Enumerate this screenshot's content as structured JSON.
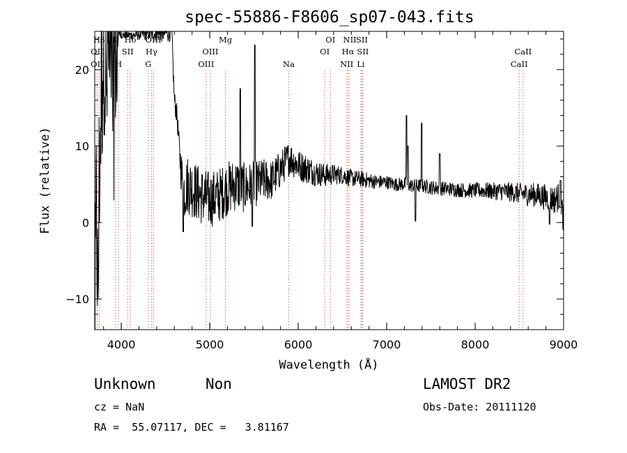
{
  "chart_data": {
    "type": "line",
    "title": "spec-55886-F8606_sp07-043.fits",
    "xlabel": "Wavelength (Å)",
    "ylabel": "Flux (relative)",
    "xlim": [
      3700,
      9000
    ],
    "ylim": [
      -14,
      25
    ],
    "x_ticks": [
      4000,
      5000,
      6000,
      7000,
      8000,
      9000
    ],
    "y_ticks": [
      -10,
      0,
      10,
      20
    ],
    "grid": false,
    "line_color": "#000000",
    "marker_line_color": "#cc3333",
    "spectrum_anchors": [
      [
        3705,
        -12
      ],
      [
        3720,
        5
      ],
      [
        3735,
        -13
      ],
      [
        3750,
        6
      ],
      [
        3770,
        15
      ],
      [
        3790,
        21
      ],
      [
        3810,
        25
      ],
      [
        3830,
        14
      ],
      [
        3850,
        25
      ],
      [
        3870,
        18
      ],
      [
        3890,
        25
      ],
      [
        3910,
        12
      ],
      [
        3930,
        24
      ],
      [
        3950,
        20
      ],
      [
        3970,
        25
      ],
      [
        4000,
        24.5
      ],
      [
        4100,
        24.5
      ],
      [
        4200,
        24.6
      ],
      [
        4300,
        24.7
      ],
      [
        4400,
        24.7
      ],
      [
        4500,
        24.8
      ],
      [
        4570,
        25
      ],
      [
        4590,
        19
      ],
      [
        4600,
        16
      ],
      [
        4630,
        14
      ],
      [
        4660,
        9
      ],
      [
        4700,
        4
      ],
      [
        4750,
        5
      ],
      [
        4800,
        4.5
      ],
      [
        4900,
        3.5
      ],
      [
        5000,
        3
      ],
      [
        5100,
        3.5
      ],
      [
        5200,
        4.5
      ],
      [
        5300,
        5
      ],
      [
        5400,
        4.5
      ],
      [
        5500,
        5
      ],
      [
        5600,
        5.5
      ],
      [
        5700,
        5.5
      ],
      [
        5800,
        7
      ],
      [
        5900,
        8.5
      ],
      [
        6000,
        7.5
      ],
      [
        6100,
        7
      ],
      [
        6200,
        6.5
      ],
      [
        6300,
        6.2
      ],
      [
        6400,
        6.3
      ],
      [
        6500,
        6.2
      ],
      [
        6600,
        5.8
      ],
      [
        6700,
        5.7
      ],
      [
        6800,
        5.5
      ],
      [
        6900,
        5.3
      ],
      [
        7000,
        5.3
      ],
      [
        7100,
        5
      ],
      [
        7200,
        5
      ],
      [
        7300,
        4.8
      ],
      [
        7400,
        4.8
      ],
      [
        7500,
        4.6
      ],
      [
        7600,
        4.5
      ],
      [
        7700,
        4.4
      ],
      [
        7800,
        4.3
      ],
      [
        7900,
        4.2
      ],
      [
        8000,
        4.2
      ],
      [
        8100,
        4.2
      ],
      [
        8200,
        4.1
      ],
      [
        8300,
        4.1
      ],
      [
        8400,
        4
      ],
      [
        8500,
        3.8
      ],
      [
        8600,
        3.7
      ],
      [
        8700,
        3.6
      ],
      [
        8800,
        3.3
      ],
      [
        8900,
        3
      ],
      [
        8960,
        3.5
      ],
      [
        8990,
        1
      ]
    ],
    "spectrum_noise": [
      [
        3700,
        0
      ],
      [
        4650,
        1.5
      ],
      [
        4700,
        4
      ],
      [
        5300,
        3.5
      ],
      [
        5800,
        2.5
      ],
      [
        6500,
        1.2
      ],
      [
        7000,
        0.9
      ],
      [
        8000,
        1
      ],
      [
        8500,
        1.4
      ],
      [
        9000,
        2
      ]
    ],
    "spectrum_features": [
      {
        "x": 4700,
        "y": -1.2
      },
      {
        "x": 5345,
        "y": 17.5
      },
      {
        "x": 5480,
        "y": -0.5
      },
      {
        "x": 5510,
        "y": 23.2
      },
      {
        "x": 7225,
        "y": 14
      },
      {
        "x": 7240,
        "y": 10
      },
      {
        "x": 7325,
        "y": 0.2
      },
      {
        "x": 7395,
        "y": 13
      },
      {
        "x": 7600,
        "y": 9
      },
      {
        "x": 8840,
        "y": -0.2
      },
      {
        "x": 8965,
        "y": 5.5
      }
    ],
    "line_markers": [
      {
        "label": "Hβ",
        "x": 3750,
        "row": 0
      },
      {
        "label": "OII",
        "x": 3727,
        "row": 1
      },
      {
        "label": "OII",
        "x": 3727,
        "row": 2
      },
      {
        "label": "K",
        "x": 3934,
        "row": 0
      },
      {
        "label": "SII",
        "x": 4072,
        "row": 1
      },
      {
        "label": "H",
        "x": 3969,
        "row": 2
      },
      {
        "label": "Hδ",
        "x": 4102,
        "row": 0
      },
      {
        "label": "Hγ",
        "x": 4341,
        "row": 1
      },
      {
        "label": "G",
        "x": 4305,
        "row": 2
      },
      {
        "label": "OIII",
        "x": 4363,
        "row": 0
      },
      {
        "label": "OIII",
        "x": 5007,
        "row": 1
      },
      {
        "label": "OIII",
        "x": 4959,
        "row": 2
      },
      {
        "label": "Mg",
        "x": 5177,
        "row": 0
      },
      {
        "label": "Na",
        "x": 5893,
        "row": 2
      },
      {
        "label": "OI",
        "x": 6364,
        "row": 0
      },
      {
        "label": "OI",
        "x": 6300,
        "row": 1
      },
      {
        "label": "NII",
        "x": 6583,
        "row": 0
      },
      {
        "label": "Hα",
        "x": 6563,
        "row": 1
      },
      {
        "label": "SII",
        "x": 6720,
        "row": 0
      },
      {
        "label": "SII",
        "x": 6731,
        "row": 1
      },
      {
        "label": "NII",
        "x": 6548,
        "row": 2
      },
      {
        "label": "Li",
        "x": 6708,
        "row": 2
      },
      {
        "label": "CaII",
        "x": 8542,
        "row": 1
      },
      {
        "label": "CaII",
        "x": 8498,
        "row": 2
      }
    ]
  },
  "info": {
    "type": "Unknown",
    "subtype": "Non",
    "survey": "LAMOST DR2",
    "cz": "cz = NaN",
    "obs_date": "Obs-Date: 20111120",
    "radec": "RA =  55.07117, DEC =   3.81167"
  }
}
